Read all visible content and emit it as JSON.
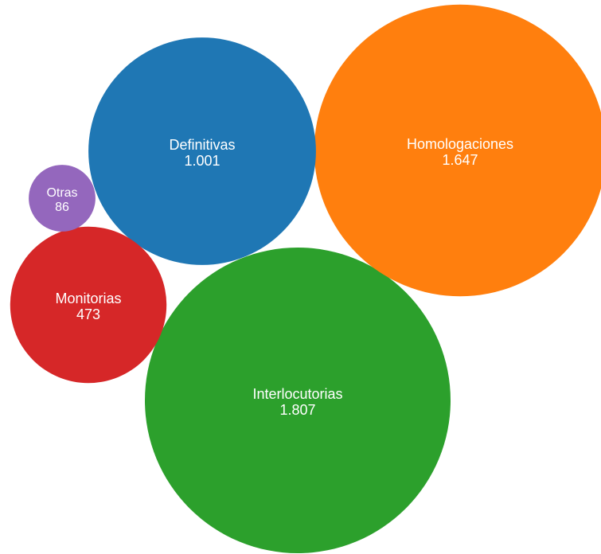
{
  "chart_data": {
    "type": "bubble",
    "title": "",
    "legend": "none",
    "grid": false,
    "series": [
      {
        "label": "Interlocutorias",
        "display_value": "1.807",
        "value": 1807,
        "color": "#2ca02c"
      },
      {
        "label": "Homologaciones",
        "display_value": "1.647",
        "value": 1647,
        "color": "#ff7f0e"
      },
      {
        "label": "Definitivas",
        "display_value": "1.001",
        "value": 1001,
        "color": "#1f77b4"
      },
      {
        "label": "Monitorias",
        "display_value": "473",
        "value": 473,
        "color": "#d62728"
      },
      {
        "label": "Otras",
        "display_value": "86",
        "value": 86,
        "color": "#9467bd"
      }
    ]
  }
}
